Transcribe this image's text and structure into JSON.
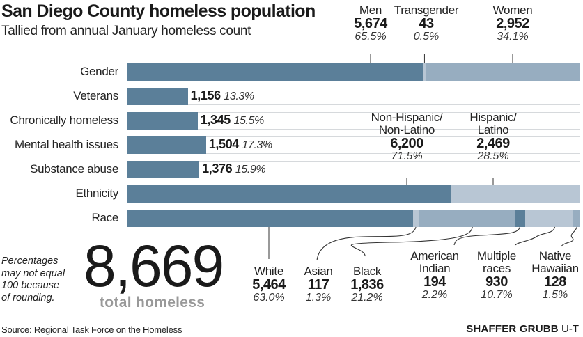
{
  "header": {
    "title": "San Diego County homeless population",
    "subtitle": "Tallied from annual January homeless count"
  },
  "colors": {
    "dark": "#5b7f99",
    "medium": "#97adc0",
    "light": "#b8c6d4",
    "track_border": "#d6d9dc"
  },
  "chart_data": {
    "type": "bar",
    "title": "San Diego County homeless population",
    "subtitle": "Tallied from annual January homeless count",
    "total": 8669,
    "rows": [
      {
        "label": "Gender",
        "stacked": true,
        "segments": [
          {
            "name": "Men",
            "value": "5,674",
            "count": 5674,
            "pct": "65.5%",
            "share": 65.5,
            "color": "#5b7f99"
          },
          {
            "name": "Transgender",
            "value": "43",
            "count": 43,
            "pct": "0.5%",
            "share": 0.5,
            "color": "#b8c6d4"
          },
          {
            "name": "Women",
            "value": "2,952",
            "count": 2952,
            "pct": "34.1%",
            "share": 34.1,
            "color": "#97adc0"
          }
        ]
      },
      {
        "label": "Veterans",
        "stacked": false,
        "value": "1,156",
        "count": 1156,
        "pct": "13.3%",
        "share": 13.3
      },
      {
        "label": "Chronically homeless",
        "stacked": false,
        "value": "1,345",
        "count": 1345,
        "pct": "15.5%",
        "share": 15.5
      },
      {
        "label": "Mental health issues",
        "stacked": false,
        "value": "1,504",
        "count": 1504,
        "pct": "17.3%",
        "share": 17.3
      },
      {
        "label": "Substance abuse",
        "stacked": false,
        "value": "1,376",
        "count": 1376,
        "pct": "15.9%",
        "share": 15.9
      },
      {
        "label": "Ethnicity",
        "stacked": true,
        "segments": [
          {
            "name": "Non-Hispanic/\nNon-Latino",
            "value": "6,200",
            "count": 6200,
            "pct": "71.5%",
            "share": 71.5,
            "color": "#5b7f99"
          },
          {
            "name": "Hispanic/\nLatino",
            "value": "2,469",
            "count": 2469,
            "pct": "28.5%",
            "share": 28.5,
            "color": "#b8c6d4"
          }
        ]
      },
      {
        "label": "Race",
        "stacked": true,
        "segments": [
          {
            "name": "White",
            "value": "5,464",
            "count": 5464,
            "pct": "63.0%",
            "share": 63.0,
            "color": "#5b7f99"
          },
          {
            "name": "Asian",
            "value": "117",
            "count": 117,
            "pct": "1.3%",
            "share": 1.3,
            "color": "#b8c6d4"
          },
          {
            "name": "Black",
            "value": "1,836",
            "count": 1836,
            "pct": "21.2%",
            "share": 21.2,
            "color": "#97adc0"
          },
          {
            "name": "American\nIndian",
            "value": "194",
            "count": 194,
            "pct": "2.2%",
            "share": 2.2,
            "color": "#5b7f99"
          },
          {
            "name": "Multiple\nraces",
            "value": "930",
            "count": 930,
            "pct": "10.7%",
            "share": 10.7,
            "color": "#b8c6d4"
          },
          {
            "name": "Native\nHawaiian",
            "value": "128",
            "count": 128,
            "pct": "1.5%",
            "share": 1.5,
            "color": "#97adc0"
          }
        ]
      }
    ]
  },
  "summary": {
    "note": "Percentages\nmay not equal\n100 because\nof rounding.",
    "total_number": "8,669",
    "total_label": "total homeless"
  },
  "footer": {
    "source": "Source: Regional Task Force on the Homeless",
    "credit_name": "SHAFFER GRUBB",
    "credit_org": "U-T"
  }
}
